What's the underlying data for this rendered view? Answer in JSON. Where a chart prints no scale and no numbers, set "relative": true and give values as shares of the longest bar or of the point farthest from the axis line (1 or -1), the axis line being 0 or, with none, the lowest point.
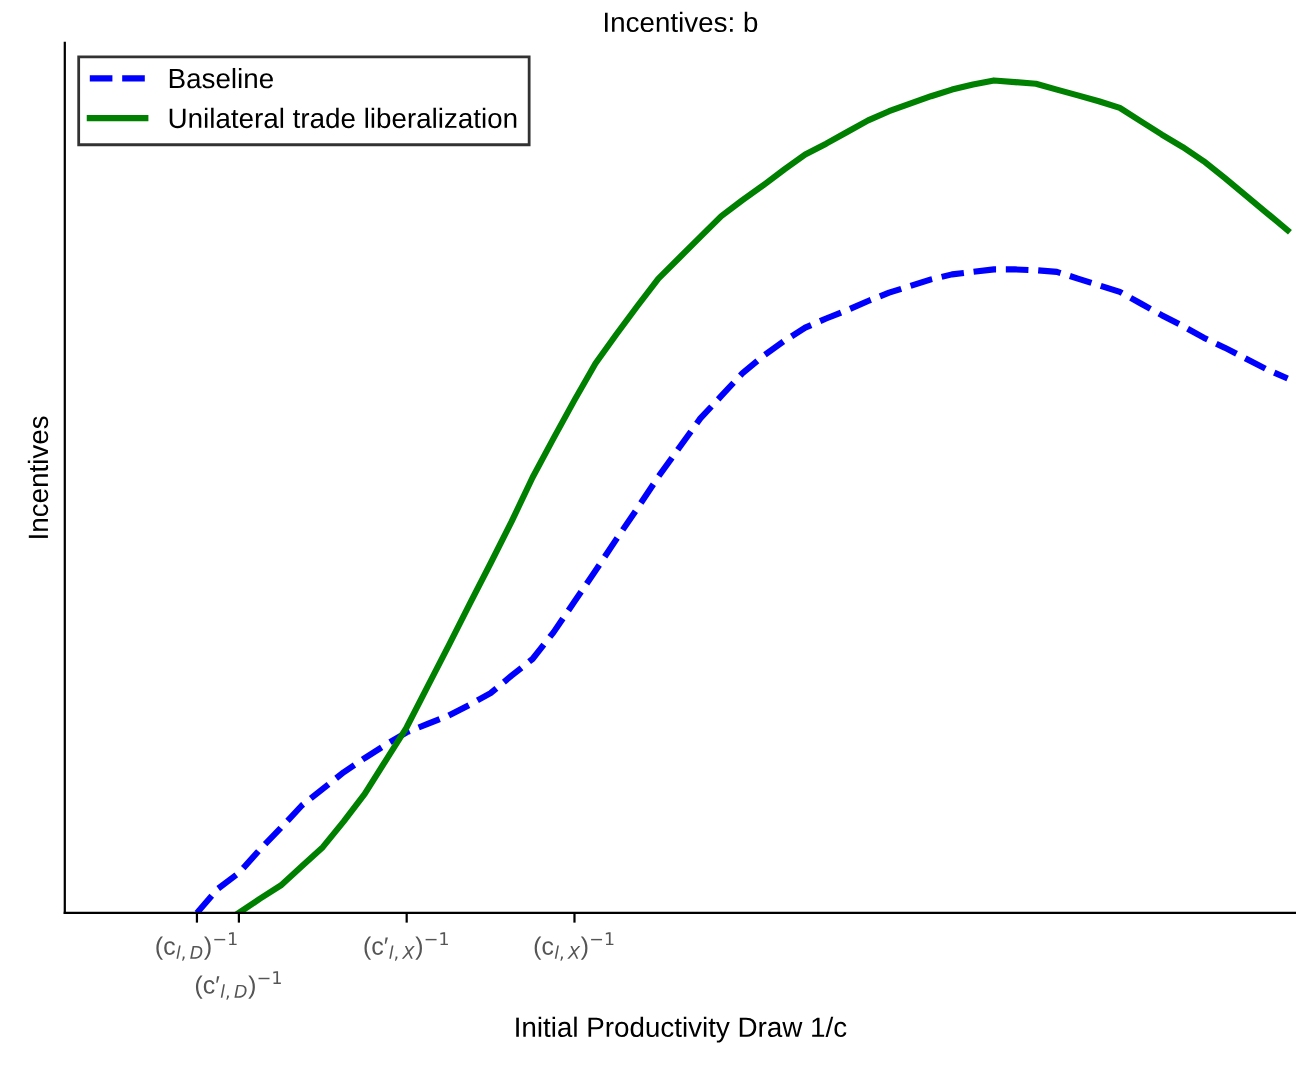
{
  "chart_data": {
    "type": "line",
    "title": "Incentives: b",
    "xlabel": "Initial Productivity Draw 1/c",
    "ylabel": "Incentives",
    "relative": true,
    "categories": [
      null,
      null,
      null,
      null,
      null,
      null,
      "(c$_{l,D}$)$^{−1}$",
      null,
      "(c′$_{l,D}$)$^{−1}$",
      null,
      null,
      null,
      null,
      null,
      null,
      null,
      "(c′$_{l,X}$)$^{−1}$",
      null,
      null,
      null,
      null,
      null,
      null,
      null,
      "(c$_{l,X}$)$^{−1}$",
      null,
      null,
      null,
      null,
      null,
      null,
      null,
      null,
      null,
      null,
      null,
      null,
      null,
      null,
      null,
      null,
      null,
      null,
      null,
      null,
      null,
      null,
      null,
      null,
      null,
      null,
      null,
      null,
      null,
      null,
      null,
      null,
      null,
      null
    ],
    "legend": "top left",
    "series": [
      {
        "name": "Baseline",
        "color": "#0000ff",
        "line_style": "dashed",
        "values": [
          null,
          null,
          null,
          null,
          null,
          null,
          0,
          0.029,
          0.048,
          0.076,
          0.102,
          0.129,
          0.149,
          0.169,
          0.186,
          0.202,
          0.217,
          0.227,
          0.237,
          0.25,
          0.264,
          0.285,
          0.305,
          0.337,
          0.374,
          0.411,
          0.449,
          0.486,
          0.524,
          0.559,
          0.594,
          0.621,
          0.648,
          0.669,
          0.687,
          0.703,
          0.714,
          0.724,
          0.735,
          0.745,
          0.753,
          0.761,
          0.767,
          0.77,
          0.773,
          0.773,
          0.772,
          0.77,
          0.762,
          0.754,
          0.746,
          0.732,
          0.718,
          0.705,
          0.691,
          0.679,
          0.666,
          0.653,
          0.642
        ]
      },
      {
        "name": "Unilateral trade liberalization",
        "color": "#008000",
        "line_style": "solid",
        "values": [
          null,
          null,
          null,
          null,
          null,
          null,
          null,
          null,
          0,
          0.017,
          0.033,
          0.056,
          0.079,
          0.11,
          0.143,
          0.183,
          0.223,
          0.272,
          0.321,
          0.371,
          0.42,
          0.47,
          0.523,
          0.57,
          0.616,
          0.66,
          0.695,
          0.729,
          0.762,
          0.787,
          0.812,
          0.837,
          0.856,
          0.874,
          0.893,
          0.911,
          0.924,
          0.938,
          0.952,
          0.963,
          0.972,
          0.981,
          0.989,
          0.995,
          1,
          0.998,
          0.996,
          0.989,
          0.982,
          0.975,
          0.967,
          0.951,
          0.935,
          0.92,
          0.903,
          0.883,
          0.862,
          0.841,
          0.82
        ]
      }
    ]
  }
}
